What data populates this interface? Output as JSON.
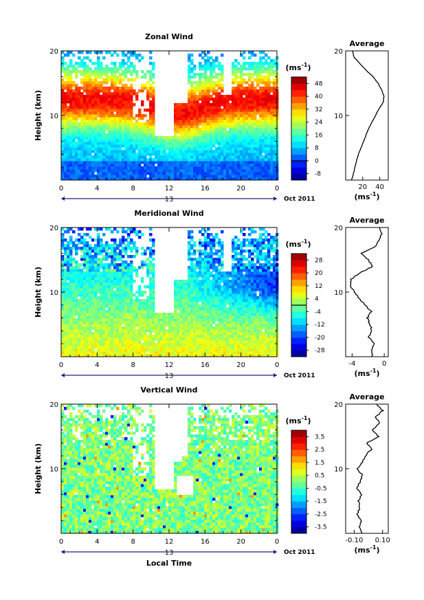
{
  "chart_data": [
    {
      "type": "heatmap",
      "title": "Zonal Wind",
      "xlabel": "",
      "ylabel": "Height (km)",
      "xlim": [
        0,
        24
      ],
      "ylim": [
        0,
        20
      ],
      "x_ticks": [
        "0",
        "4",
        "8",
        "12",
        "16",
        "20",
        "0"
      ],
      "y_ticks": [
        "10",
        "20"
      ],
      "date_marker": "13",
      "month_label": "Oct 2011",
      "colorbar": {
        "unit_base": "(ms",
        "unit_exp": "-1",
        "unit_close": ")",
        "tick_labels": [
          "48",
          "40",
          "32",
          "24",
          "16",
          "8",
          "0",
          "-8"
        ],
        "tick_values": [
          48,
          40,
          32,
          24,
          16,
          8,
          0,
          -8
        ],
        "range": [
          -12,
          52
        ],
        "zero_line": 0
      },
      "profile": {
        "title": "Average",
        "xlabel_base": "(ms",
        "xlabel_exp": "-1",
        "xlabel_close": ")",
        "x_ticks": [
          "20",
          "40"
        ],
        "x_tick_values": [
          20,
          40
        ],
        "xlim": [
          0,
          50
        ],
        "ylim": [
          0,
          20
        ],
        "y_ticks": [
          "10",
          "20"
        ],
        "points": [
          [
            7,
            0
          ],
          [
            9,
            1
          ],
          [
            11,
            2
          ],
          [
            13,
            3
          ],
          [
            15,
            4
          ],
          [
            18,
            5
          ],
          [
            21,
            6
          ],
          [
            24,
            7
          ],
          [
            27,
            8
          ],
          [
            31,
            9
          ],
          [
            35,
            10
          ],
          [
            39,
            11
          ],
          [
            44,
            12
          ],
          [
            45,
            13
          ],
          [
            42,
            14
          ],
          [
            38,
            15
          ],
          [
            32,
            16
          ],
          [
            24,
            17
          ],
          [
            17,
            18
          ],
          [
            10,
            19
          ],
          [
            8,
            20
          ]
        ]
      }
    },
    {
      "type": "heatmap",
      "title": "Meridional Wind",
      "xlabel": "",
      "ylabel": "Height (km)",
      "xlim": [
        0,
        24
      ],
      "ylim": [
        0,
        20
      ],
      "x_ticks": [
        "0",
        "4",
        "8",
        "12",
        "16",
        "20",
        "0"
      ],
      "y_ticks": [
        "10",
        "20"
      ],
      "date_marker": "13",
      "month_label": "Oct 2011",
      "colorbar": {
        "unit_base": "(ms",
        "unit_exp": "-1",
        "unit_close": ")",
        "tick_labels": [
          "28",
          "20",
          "12",
          "4",
          "-4",
          "-12",
          "-20",
          "-28"
        ],
        "tick_values": [
          28,
          20,
          12,
          4,
          -4,
          -12,
          -20,
          -28
        ],
        "range": [
          -32,
          32
        ],
        "zero_line": 0
      },
      "profile": {
        "title": "Average",
        "xlabel_base": "(ms",
        "xlabel_exp": "-1",
        "xlabel_close": ")",
        "x_ticks": [
          "-4",
          "0"
        ],
        "x_tick_values": [
          -4,
          0
        ],
        "xlim": [
          -4.8,
          0.5
        ],
        "ylim": [
          0,
          20
        ],
        "y_ticks": [
          "10",
          "20"
        ],
        "points": [
          [
            -1.5,
            0
          ],
          [
            -1.6,
            1
          ],
          [
            -1.3,
            2
          ],
          [
            -1.9,
            3
          ],
          [
            -1.5,
            4
          ],
          [
            -1.8,
            5
          ],
          [
            -2.1,
            6
          ],
          [
            -1.6,
            7
          ],
          [
            -2.4,
            8
          ],
          [
            -3.1,
            9
          ],
          [
            -3.7,
            10
          ],
          [
            -4.2,
            11
          ],
          [
            -4.1,
            12
          ],
          [
            -3.0,
            13
          ],
          [
            -1.4,
            14
          ],
          [
            -2.0,
            15
          ],
          [
            -2.8,
            16
          ],
          [
            -1.2,
            17
          ],
          [
            -0.7,
            18
          ],
          [
            -0.3,
            19
          ],
          [
            -0.6,
            20
          ]
        ]
      }
    },
    {
      "type": "heatmap",
      "title": "Vertical Wind",
      "xlabel": "Local Time",
      "ylabel": "Height (km)",
      "xlim": [
        0,
        24
      ],
      "ylim": [
        0,
        20
      ],
      "x_ticks": [
        "0",
        "4",
        "8",
        "12",
        "16",
        "20",
        "0"
      ],
      "y_ticks": [
        "10",
        "20"
      ],
      "date_marker": "13",
      "month_label": "Oct 2011",
      "colorbar": {
        "unit_base": "(ms",
        "unit_exp": "-1",
        "unit_close": ")",
        "tick_labels": [
          "3.5",
          "2.5",
          "1.5",
          "0.5",
          "-0.5",
          "-1.5",
          "-2.5",
          "-3.5"
        ],
        "tick_values": [
          3.5,
          2.5,
          1.5,
          0.5,
          -0.5,
          -1.5,
          -2.5,
          -3.5
        ],
        "range": [
          -4,
          4
        ],
        "zero_line": null
      },
      "profile": {
        "title": "Average",
        "xlabel_base": "(ms",
        "xlabel_exp": "-1",
        "xlabel_close": ")",
        "x_ticks": [
          "-0.10",
          "0.10"
        ],
        "x_tick_values": [
          -0.1,
          0.1
        ],
        "xlim": [
          -0.16,
          0.14
        ],
        "ylim": [
          0,
          20
        ],
        "y_ticks": [
          "10",
          "20"
        ],
        "points": [
          [
            -0.05,
            0
          ],
          [
            -0.06,
            1
          ],
          [
            -0.05,
            2
          ],
          [
            -0.08,
            3
          ],
          [
            -0.06,
            4
          ],
          [
            -0.07,
            5
          ],
          [
            -0.05,
            6
          ],
          [
            -0.08,
            7
          ],
          [
            -0.06,
            8
          ],
          [
            -0.04,
            9
          ],
          [
            -0.08,
            10
          ],
          [
            -0.04,
            11
          ],
          [
            -0.02,
            12
          ],
          [
            0.02,
            13
          ],
          [
            -0.01,
            14
          ],
          [
            0.07,
            15
          ],
          [
            0.03,
            16
          ],
          [
            0.08,
            17
          ],
          [
            0.05,
            18
          ],
          [
            0.1,
            19
          ],
          [
            0.06,
            20
          ]
        ]
      }
    }
  ]
}
